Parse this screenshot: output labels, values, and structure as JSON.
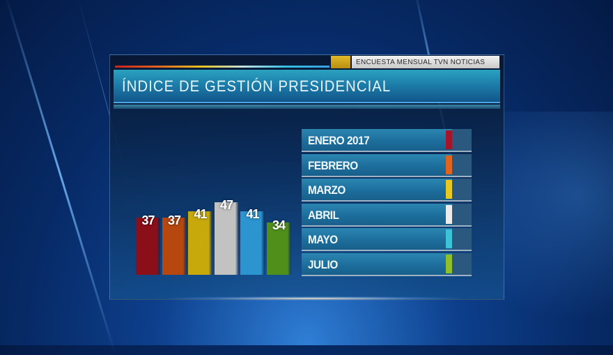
{
  "header": {
    "source": "ENCUESTA MENSUAL TVN NOTICIAS",
    "title": "ÍNDICE DE GESTIÓN PRESIDENCIAL"
  },
  "legend": [
    {
      "label": "ENERO 2017",
      "color": "#a5152a"
    },
    {
      "label": "FEBRERO",
      "color": "#e0641e"
    },
    {
      "label": "MARZO",
      "color": "#e8c920"
    },
    {
      "label": "ABRIL",
      "color": "#ececec"
    },
    {
      "label": "MAYO",
      "color": "#3cc3d8"
    },
    {
      "label": "JULIO",
      "color": "#8fbf2a"
    }
  ],
  "chart_data": {
    "type": "bar",
    "title": "ÍNDICE DE GESTIÓN PRESIDENCIAL",
    "subtitle": "ENCUESTA MENSUAL TVN NOTICIAS",
    "categories": [
      "ENERO 2017",
      "FEBRERO",
      "MARZO",
      "ABRIL",
      "MAYO",
      "JULIO"
    ],
    "values": [
      37,
      37,
      41,
      47,
      41,
      34
    ],
    "colors": [
      "#8a0f18",
      "#b5470f",
      "#c7a90c",
      "#c2c2c2",
      "#2c94cf",
      "#4f8f1a"
    ],
    "xlabel": "",
    "ylabel": "",
    "grid": false,
    "legend_position": "right",
    "data_labels": true
  }
}
